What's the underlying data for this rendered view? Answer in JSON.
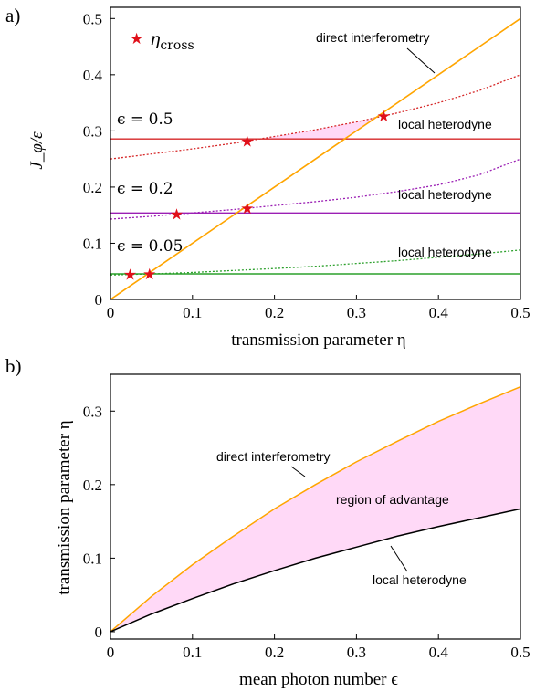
{
  "chart_data": [
    {
      "panel": "a)",
      "type": "line",
      "xlabel": "transmission parameter η",
      "ylabel": "J_φ/ε",
      "xlim": [
        0,
        0.5
      ],
      "ylim": [
        0,
        0.52
      ],
      "xticks": [
        "0",
        "0.1",
        "0.2",
        "0.3",
        "0.4",
        "0.5"
      ],
      "xtick_values": [
        0,
        0.1,
        0.2,
        0.3,
        0.4,
        0.5
      ],
      "yticks": [
        "0",
        "0.1",
        "0.2",
        "0.3",
        "0.4",
        "0.5"
      ],
      "ytick_values": [
        0,
        0.1,
        0.2,
        0.3,
        0.4,
        0.5
      ],
      "legend": {
        "marker": "★",
        "label": "η",
        "label_sub": "cross",
        "placement": "top-left"
      },
      "colors": {
        "direct": "#ffa500",
        "eps05": "#d62728",
        "eps02": "#9b1fb4",
        "eps005": "#2ca02c",
        "marker": "#e0101a",
        "region": "#ffd9f7"
      },
      "direct_interferometry": {
        "label": "direct interferometry",
        "x": [
          0,
          0.5
        ],
        "y": [
          0,
          0.5
        ]
      },
      "groups": [
        {
          "epsilon_label": "ϵ = 0.5",
          "local_heterodyne_label": "local heterodyne",
          "local_heterodyne_value": 0.2857,
          "dotted": {
            "x": [
              0,
              0.05,
              0.1,
              0.15,
              0.2,
              0.25,
              0.3,
              0.35,
              0.4,
              0.45,
              0.5
            ],
            "y": [
              0.25,
              0.259,
              0.268,
              0.278,
              0.29,
              0.302,
              0.316,
              0.332,
              0.35,
              0.372,
              0.4
            ]
          },
          "crossings": [
            0.1667,
            0.3333
          ],
          "shaded_between": [
            0.1667,
            0.3333
          ]
        },
        {
          "epsilon_label": "ϵ = 0.2",
          "local_heterodyne_label": "local heterodyne",
          "local_heterodyne_value": 0.1538,
          "dotted": {
            "x": [
              0,
              0.05,
              0.1,
              0.15,
              0.2,
              0.25,
              0.3,
              0.35,
              0.4,
              0.45,
              0.5
            ],
            "y": [
              0.143,
              0.148,
              0.154,
              0.16,
              0.167,
              0.174,
              0.182,
              0.192,
              0.204,
              0.222,
              0.25
            ]
          },
          "crossings": [
            0.0808,
            0.1667
          ]
        },
        {
          "epsilon_label": "ϵ = 0.05",
          "local_heterodyne_label": "local heterodyne",
          "local_heterodyne_value": 0.0455,
          "dotted": {
            "x": [
              0,
              0.05,
              0.1,
              0.15,
              0.2,
              0.25,
              0.3,
              0.35,
              0.4,
              0.45,
              0.5
            ],
            "y": [
              0.0435,
              0.0455,
              0.048,
              0.0515,
              0.055,
              0.059,
              0.064,
              0.069,
              0.075,
              0.081,
              0.088
            ]
          },
          "crossings": [
            0.024,
            0.0476
          ]
        }
      ]
    },
    {
      "panel": "b)",
      "type": "area",
      "xlabel": "mean photon number ϵ",
      "ylabel": "transmission parameter η",
      "xlim": [
        0,
        0.5
      ],
      "ylim": [
        -0.01,
        0.35
      ],
      "xticks": [
        "0",
        "0.1",
        "0.2",
        "0.3",
        "0.4",
        "0.5"
      ],
      "xtick_values": [
        0,
        0.1,
        0.2,
        0.3,
        0.4,
        0.5
      ],
      "yticks": [
        "0",
        "0.1",
        "0.2",
        "0.3"
      ],
      "ytick_values": [
        0,
        0.1,
        0.2,
        0.3
      ],
      "x": [
        0,
        0.05,
        0.1,
        0.15,
        0.2,
        0.25,
        0.3,
        0.35,
        0.4,
        0.45,
        0.5
      ],
      "series": [
        {
          "name": "direct interferometry",
          "color": "#ffa500",
          "values": [
            0,
            0.048,
            0.091,
            0.13,
            0.167,
            0.2,
            0.231,
            0.259,
            0.286,
            0.31,
            0.333
          ]
        },
        {
          "name": "local heterodyne",
          "color": "#000000",
          "values": [
            0,
            0.024,
            0.045,
            0.065,
            0.083,
            0.1,
            0.115,
            0.13,
            0.143,
            0.155,
            0.167
          ]
        }
      ],
      "region_label": "region of advantage",
      "region_color": "#ffd9f7"
    }
  ]
}
